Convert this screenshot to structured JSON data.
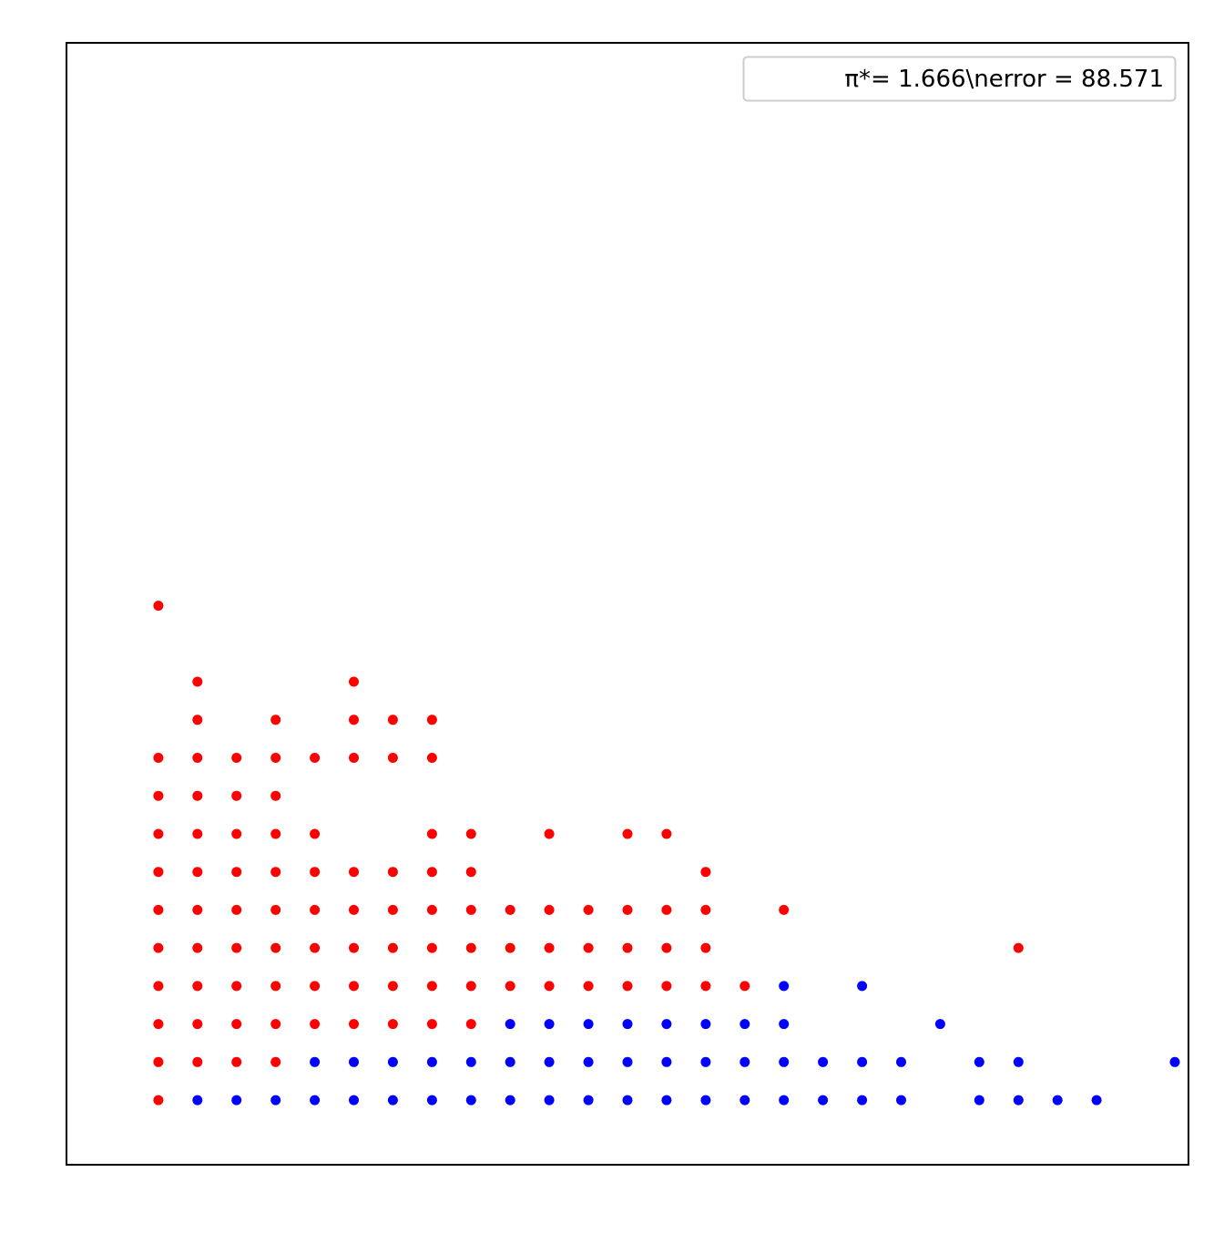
{
  "chart_data": {
    "type": "scatter",
    "title": "",
    "xlabel": "",
    "ylabel": "",
    "xlim": [
      -1.35,
      27.35
    ],
    "ylim": [
      -1.7,
      27.8
    ],
    "grid": false,
    "axis_ticks": false,
    "legend": {
      "text": "π*= 1.666\\nerror = 88.571",
      "placement": "upper right"
    },
    "colors": {
      "red": "#ff0000",
      "blue": "#0000ff",
      "frame": "#000000"
    },
    "series": [
      {
        "color": "#ff0000",
        "points": [
          [
            1,
            13
          ],
          [
            2,
            11
          ],
          [
            6,
            11
          ],
          [
            2,
            10
          ],
          [
            4,
            10
          ],
          [
            6,
            10
          ],
          [
            7,
            10
          ],
          [
            8,
            10
          ],
          [
            1,
            9
          ],
          [
            2,
            9
          ],
          [
            3,
            9
          ],
          [
            4,
            9
          ],
          [
            5,
            9
          ],
          [
            6,
            9
          ],
          [
            7,
            9
          ],
          [
            8,
            9
          ],
          [
            1,
            8
          ],
          [
            2,
            8
          ],
          [
            3,
            8
          ],
          [
            4,
            8
          ],
          [
            1,
            7
          ],
          [
            2,
            7
          ],
          [
            3,
            7
          ],
          [
            4,
            7
          ],
          [
            5,
            7
          ],
          [
            8,
            7
          ],
          [
            9,
            7
          ],
          [
            11,
            7
          ],
          [
            13,
            7
          ],
          [
            14,
            7
          ],
          [
            1,
            6
          ],
          [
            2,
            6
          ],
          [
            3,
            6
          ],
          [
            4,
            6
          ],
          [
            5,
            6
          ],
          [
            6,
            6
          ],
          [
            7,
            6
          ],
          [
            8,
            6
          ],
          [
            9,
            6
          ],
          [
            15,
            6
          ],
          [
            1,
            5
          ],
          [
            2,
            5
          ],
          [
            3,
            5
          ],
          [
            4,
            5
          ],
          [
            5,
            5
          ],
          [
            6,
            5
          ],
          [
            7,
            5
          ],
          [
            8,
            5
          ],
          [
            9,
            5
          ],
          [
            10,
            5
          ],
          [
            11,
            5
          ],
          [
            12,
            5
          ],
          [
            13,
            5
          ],
          [
            14,
            5
          ],
          [
            15,
            5
          ],
          [
            17,
            5
          ],
          [
            1,
            4
          ],
          [
            2,
            4
          ],
          [
            3,
            4
          ],
          [
            4,
            4
          ],
          [
            5,
            4
          ],
          [
            6,
            4
          ],
          [
            7,
            4
          ],
          [
            8,
            4
          ],
          [
            9,
            4
          ],
          [
            10,
            4
          ],
          [
            11,
            4
          ],
          [
            12,
            4
          ],
          [
            13,
            4
          ],
          [
            14,
            4
          ],
          [
            15,
            4
          ],
          [
            23,
            4
          ],
          [
            1,
            3
          ],
          [
            2,
            3
          ],
          [
            3,
            3
          ],
          [
            4,
            3
          ],
          [
            5,
            3
          ],
          [
            6,
            3
          ],
          [
            7,
            3
          ],
          [
            8,
            3
          ],
          [
            9,
            3
          ],
          [
            10,
            3
          ],
          [
            11,
            3
          ],
          [
            12,
            3
          ],
          [
            13,
            3
          ],
          [
            14,
            3
          ],
          [
            15,
            3
          ],
          [
            16,
            3
          ],
          [
            1,
            2
          ],
          [
            2,
            2
          ],
          [
            3,
            2
          ],
          [
            4,
            2
          ],
          [
            5,
            2
          ],
          [
            6,
            2
          ],
          [
            7,
            2
          ],
          [
            8,
            2
          ],
          [
            9,
            2
          ],
          [
            1,
            1
          ],
          [
            2,
            1
          ],
          [
            3,
            1
          ],
          [
            4,
            1
          ],
          [
            1,
            0
          ]
        ]
      },
      {
        "color": "#0000ff",
        "points": [
          [
            17,
            3
          ],
          [
            19,
            3
          ],
          [
            10,
            2
          ],
          [
            11,
            2
          ],
          [
            12,
            2
          ],
          [
            13,
            2
          ],
          [
            14,
            2
          ],
          [
            15,
            2
          ],
          [
            16,
            2
          ],
          [
            17,
            2
          ],
          [
            21,
            2
          ],
          [
            5,
            1
          ],
          [
            6,
            1
          ],
          [
            7,
            1
          ],
          [
            8,
            1
          ],
          [
            9,
            1
          ],
          [
            10,
            1
          ],
          [
            11,
            1
          ],
          [
            12,
            1
          ],
          [
            13,
            1
          ],
          [
            14,
            1
          ],
          [
            15,
            1
          ],
          [
            16,
            1
          ],
          [
            17,
            1
          ],
          [
            18,
            1
          ],
          [
            19,
            1
          ],
          [
            20,
            1
          ],
          [
            22,
            1
          ],
          [
            23,
            1
          ],
          [
            27,
            1
          ],
          [
            2,
            0
          ],
          [
            3,
            0
          ],
          [
            4,
            0
          ],
          [
            5,
            0
          ],
          [
            6,
            0
          ],
          [
            7,
            0
          ],
          [
            8,
            0
          ],
          [
            9,
            0
          ],
          [
            10,
            0
          ],
          [
            11,
            0
          ],
          [
            12,
            0
          ],
          [
            13,
            0
          ],
          [
            14,
            0
          ],
          [
            15,
            0
          ],
          [
            16,
            0
          ],
          [
            17,
            0
          ],
          [
            18,
            0
          ],
          [
            19,
            0
          ],
          [
            20,
            0
          ],
          [
            22,
            0
          ],
          [
            23,
            0
          ],
          [
            24,
            0
          ],
          [
            25,
            0
          ]
        ]
      }
    ]
  }
}
